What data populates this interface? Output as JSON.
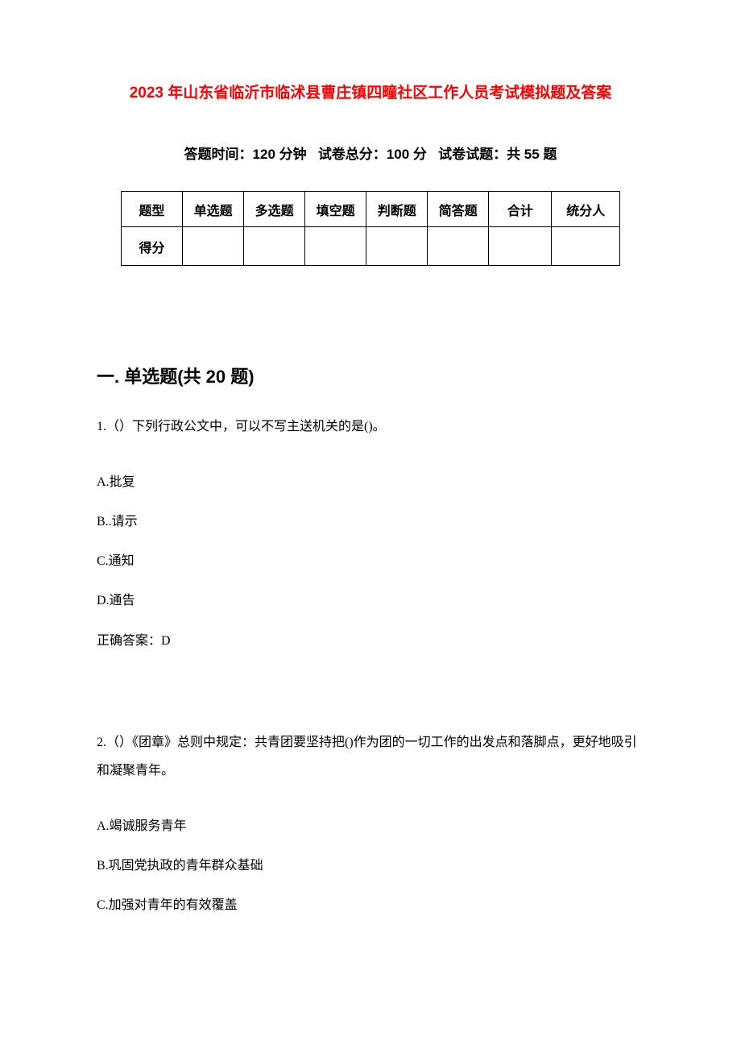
{
  "title": "2023 年山东省临沂市临沭县曹庄镇四疃社区工作人员考试模拟题及答案",
  "exam_info": {
    "time_label": "答题时间：",
    "time_value": "120 分钟",
    "total_label": "试卷总分：",
    "total_value": "100 分",
    "count_label": "试卷试题：",
    "count_value": "共 55 题"
  },
  "score_table": {
    "headers": [
      "题型",
      "单选题",
      "多选题",
      "填空题",
      "判断题",
      "简答题",
      "合计",
      "统分人"
    ],
    "row_label": "得分"
  },
  "section1": {
    "heading": "一. 单选题(共 20 题)",
    "questions": [
      {
        "number": "1.",
        "prefix": "（）",
        "text": "下列行政公文中，可以不写主送机关的是()。",
        "options": [
          "A.批复",
          "B..请示",
          "C.通知",
          "D.通告"
        ],
        "answer_label": "正确答案：",
        "answer": "D"
      },
      {
        "number": "2.",
        "prefix": "（）",
        "text": "《团章》总则中规定：共青团要坚持把()作为团的一切工作的出发点和落脚点，更好地吸引和凝聚青年。",
        "options": [
          "A.竭诚服务青年",
          "B.巩固党执政的青年群众基础",
          "C.加强对青年的有效覆盖"
        ]
      }
    ]
  },
  "colors": {
    "title_color": "#ff0000",
    "text_color": "#000000",
    "background": "#ffffff",
    "border": "#000000"
  }
}
